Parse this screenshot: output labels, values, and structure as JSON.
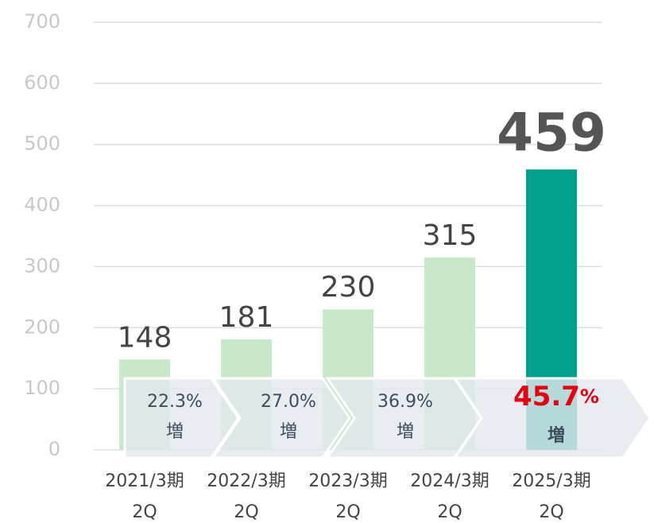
{
  "chart_data": {
    "type": "bar",
    "categories": [
      [
        "2021/3期",
        "2Q"
      ],
      [
        "2022/3期",
        "2Q"
      ],
      [
        "2023/3期",
        "2Q"
      ],
      [
        "2024/3期",
        "2Q"
      ],
      [
        "2025/3期",
        "2Q"
      ]
    ],
    "values": [
      148,
      181,
      230,
      315,
      459
    ],
    "colors": [
      "#c9e7c9",
      "#c9e7c9",
      "#c9e7c9",
      "#c9e7c9",
      "#00a08c"
    ],
    "ylim": [
      0,
      700
    ],
    "yticks": [
      0,
      100,
      200,
      300,
      400,
      500,
      600,
      700
    ],
    "grid": true,
    "annotations": [
      {
        "rate": "22.3%",
        "label": "増"
      },
      {
        "rate": "27.0%",
        "label": "増"
      },
      {
        "rate": "36.9%",
        "label": "増"
      },
      {
        "rate": "45.7",
        "unit": "%",
        "label": "増"
      }
    ]
  }
}
